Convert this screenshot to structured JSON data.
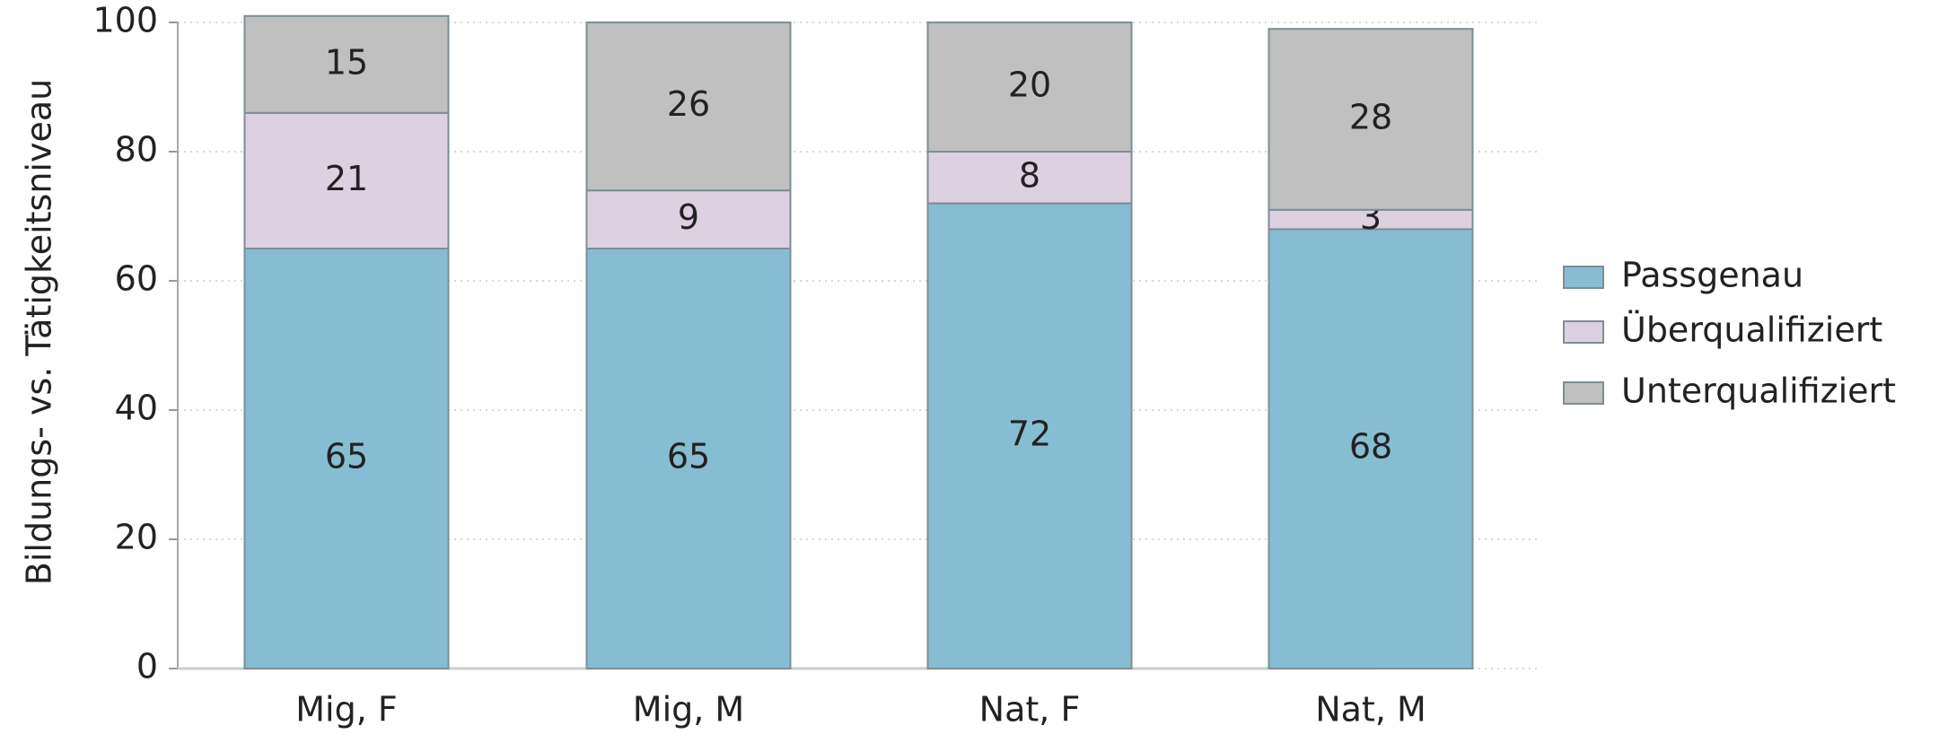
{
  "chart_data": {
    "type": "stacked_bar",
    "y_label": "Bildungs- vs. Tätigkeitsniveau",
    "categories": [
      "Mig, F",
      "Mig, M",
      "Nat, F",
      "Nat, M"
    ],
    "series": [
      {
        "name": "Passgenau",
        "color": "#86bdd3",
        "values": [
          65,
          65,
          72,
          68
        ]
      },
      {
        "name": "Überqualifiziert",
        "color": "#ddd0e0",
        "values": [
          21,
          9,
          8,
          3
        ]
      },
      {
        "name": "Unterqualifiziert",
        "color": "#c0c0c0",
        "values": [
          15,
          26,
          20,
          28
        ]
      }
    ],
    "ylim": [
      0,
      100
    ],
    "yticks": [
      0,
      20,
      40,
      60,
      80,
      100
    ],
    "grid": true,
    "legend": "right"
  }
}
